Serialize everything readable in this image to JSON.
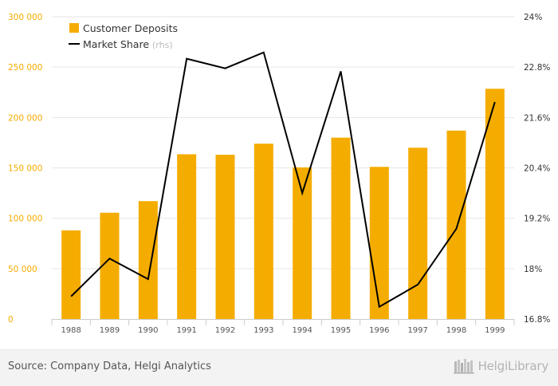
{
  "chart_data": {
    "type": "bar",
    "categories": [
      "1988",
      "1989",
      "1990",
      "1991",
      "1992",
      "1993",
      "1994",
      "1995",
      "1996",
      "1997",
      "1998",
      "1999"
    ],
    "series": [
      {
        "name": "Customer Deposits",
        "type": "bar",
        "axis": "left",
        "color": "#f5ac00",
        "values": [
          88000,
          105500,
          117000,
          163500,
          163000,
          174000,
          150500,
          180000,
          151000,
          170000,
          187000,
          228500
        ]
      },
      {
        "name": "Market Share",
        "name_suffix": "(rhs)",
        "type": "line",
        "axis": "right",
        "color": "#000000",
        "values": [
          17.34,
          18.24,
          17.75,
          23.0,
          22.77,
          23.15,
          19.8,
          22.7,
          17.09,
          17.62,
          18.95,
          21.97
        ]
      }
    ],
    "y_left": {
      "ylim": [
        0,
        300000
      ],
      "ticks": [
        0,
        50000,
        100000,
        150000,
        200000,
        250000,
        300000
      ],
      "tick_labels": [
        "0",
        "50 000",
        "100 000",
        "150 000",
        "200 000",
        "250 000",
        "300 000"
      ],
      "tick_color": "#f5ac00"
    },
    "y_right": {
      "ylim": [
        16.8,
        24.0
      ],
      "ticks": [
        16.8,
        18.0,
        19.2,
        20.4,
        21.6,
        22.8,
        24.0
      ],
      "tick_labels": [
        "16.8%",
        "18%",
        "19.2%",
        "20.4%",
        "21.6%",
        "22.8%",
        "24%"
      ]
    },
    "grid": true,
    "legend_position": "top-left"
  },
  "footer": {
    "source": "Source: Company Data, Helgi Analytics",
    "brand": "HelgiLibrary",
    "brand_icon": "library-books-icon"
  }
}
